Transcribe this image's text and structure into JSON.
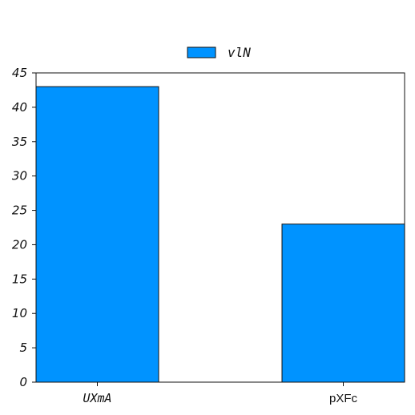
{
  "chart_data": {
    "type": "bar",
    "categories": [
      "UXmA",
      "pXFc"
    ],
    "series": [
      {
        "name": "vlN",
        "values": [
          43,
          23
        ],
        "color": "#0093ff"
      }
    ],
    "ylim": [
      0,
      45
    ],
    "yticks": [
      0,
      5,
      10,
      15,
      20,
      25,
      30,
      35,
      40,
      45
    ],
    "grid": false,
    "legend": "top-center",
    "title": "",
    "xlabel": "",
    "ylabel": ""
  }
}
